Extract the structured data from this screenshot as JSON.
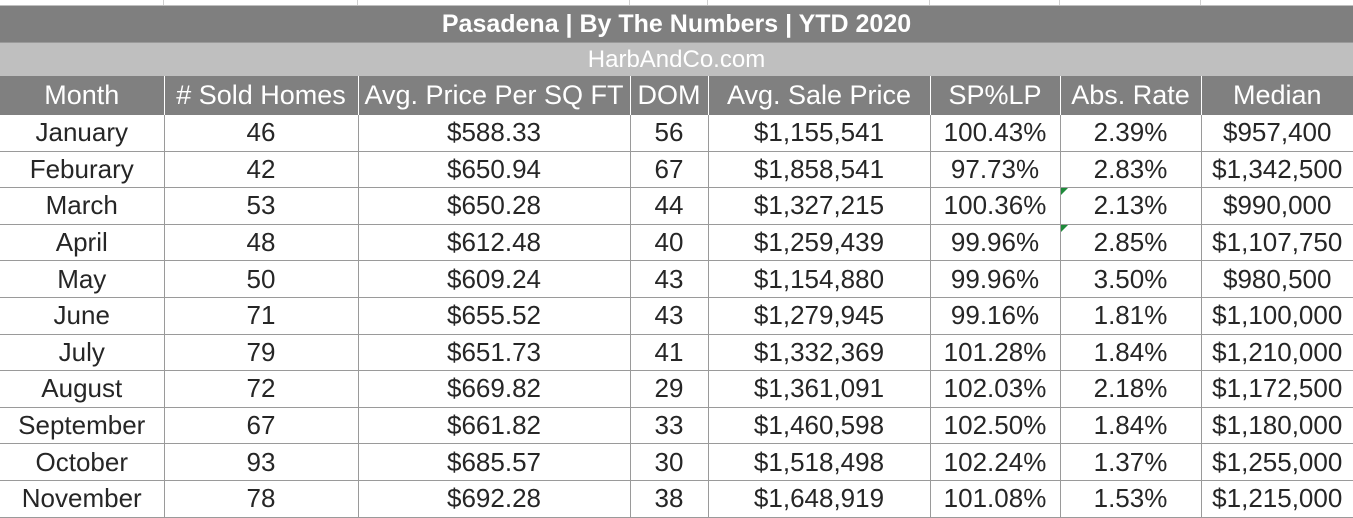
{
  "title": "Pasadena  |  By The Numbers  |  YTD 2020",
  "subtitle": "HarbAndCo.com",
  "columns": [
    "Month",
    "# Sold Homes",
    "Avg. Price Per SQ FT",
    "DOM",
    "Avg. Sale Price",
    "SP%LP",
    "Abs. Rate",
    "Median"
  ],
  "rows": [
    [
      "January",
      "46",
      "$588.33",
      "56",
      "$1,155,541",
      "100.43%",
      "2.39%",
      "$957,400"
    ],
    [
      "Feburary",
      "42",
      "$650.94",
      "67",
      "$1,858,541",
      "97.73%",
      "2.83%",
      "$1,342,500"
    ],
    [
      "March",
      "53",
      "$650.28",
      "44",
      "$1,327,215",
      "100.36%",
      "2.13%",
      "$990,000"
    ],
    [
      "April",
      "48",
      "$612.48",
      "40",
      "$1,259,439",
      "99.96%",
      "2.85%",
      "$1,107,750"
    ],
    [
      "May",
      "50",
      "$609.24",
      "43",
      "$1,154,880",
      "99.96%",
      "3.50%",
      "$980,500"
    ],
    [
      "June",
      "71",
      "$655.52",
      "43",
      "$1,279,945",
      "99.16%",
      "1.81%",
      "$1,100,000"
    ],
    [
      "July",
      "79",
      "$651.73",
      "41",
      "$1,332,369",
      "101.28%",
      "1.84%",
      "$1,210,000"
    ],
    [
      "August",
      "72",
      "$669.82",
      "29",
      "$1,361,091",
      "102.03%",
      "2.18%",
      "$1,172,500"
    ],
    [
      "September",
      "67",
      "$661.82",
      "33",
      "$1,460,598",
      "102.50%",
      "1.84%",
      "$1,180,000"
    ],
    [
      "October",
      "93",
      "$685.57",
      "30",
      "$1,518,498",
      "102.24%",
      "1.37%",
      "$1,255,000"
    ],
    [
      "November",
      "78",
      "$692.28",
      "38",
      "$1,648,919",
      "101.08%",
      "1.53%",
      "$1,215,000"
    ]
  ],
  "colors": {
    "title_band": "#7f7f7f",
    "subtitle_band": "#bfbfbf",
    "header_band": "#808080",
    "cell_text": "#262626",
    "comment_marker": "#1e8a3a"
  }
}
